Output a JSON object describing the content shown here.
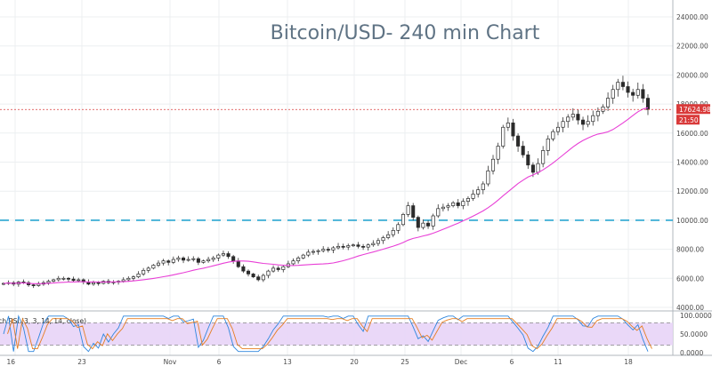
{
  "chart_data": {
    "type": "candlestick",
    "title": "Bitcoin/USD- 240 min Chart",
    "price_axis": {
      "ticks": [
        "24000.00",
        "22000.00",
        "20000.00",
        "18000.00",
        "16000.00",
        "14000.00",
        "12000.00",
        "10000.00",
        "8000.00",
        "6000.00",
        "4000.00"
      ],
      "ylim": [
        4000,
        24000
      ]
    },
    "time_axis": {
      "ticks": [
        "16",
        "23",
        "Nov",
        "6",
        "13",
        "20",
        "25",
        "Dec",
        "6",
        "11",
        "18"
      ]
    },
    "last_price_label": "17624.98",
    "countdown_label": "21:50",
    "horizontal_level": 10000,
    "moving_average_color": "#e83fd6",
    "colors": {
      "up": "#2e7d32",
      "down": "#c62828",
      "level": "#2aa7d1",
      "last_price": "#d93a3a",
      "stoch_k": "#2e86de",
      "stoch_d": "#e67e22"
    },
    "price_series": {
      "description": "approximate closes, Oct 16 to Dec 20",
      "closes": [
        5650,
        5700,
        5600,
        5750,
        5700,
        5550,
        5500,
        5600,
        5700,
        5800,
        5900,
        6000,
        6000,
        5950,
        5850,
        5900,
        5750,
        5600,
        5700,
        5650,
        5800,
        5700,
        5750,
        5800,
        5900,
        6000,
        6100,
        6300,
        6550,
        6700,
        6900,
        7050,
        7200,
        7100,
        7300,
        7400,
        7250,
        7300,
        7350,
        7100,
        7200,
        7300,
        7400,
        7600,
        7700,
        7500,
        7200,
        6800,
        6500,
        6300,
        6100,
        5900,
        6200,
        6500,
        6700,
        6600,
        6800,
        7000,
        7200,
        7400,
        7600,
        7800,
        7850,
        7900,
        8000,
        7950,
        8100,
        8200,
        8150,
        8250,
        8300,
        8200,
        8150,
        8300,
        8400,
        8600,
        8800,
        9000,
        9300,
        9700,
        10400,
        11000,
        10200,
        9500,
        9800,
        9600,
        10300,
        10800,
        10900,
        11000,
        11200,
        11000,
        11300,
        11500,
        11800,
        12100,
        12500,
        13400,
        14200,
        15100,
        16400,
        16700,
        15800,
        15100,
        14500,
        13800,
        13300,
        13900,
        14800,
        15600,
        16100,
        16400,
        16800,
        17100,
        17300,
        16900,
        16600,
        16800,
        17200,
        17500,
        17800,
        18400,
        19000,
        19500,
        19200,
        18800,
        18600,
        19000,
        18400,
        17625
      ]
    },
    "stoch_rsi": {
      "label": "Stoch RSI (3, 3, 14, 14, close)",
      "ticks": [
        "100.0000",
        "50.0000",
        "0.0000"
      ],
      "ylim": [
        0,
        100
      ],
      "bands": [
        20,
        80
      ]
    }
  }
}
